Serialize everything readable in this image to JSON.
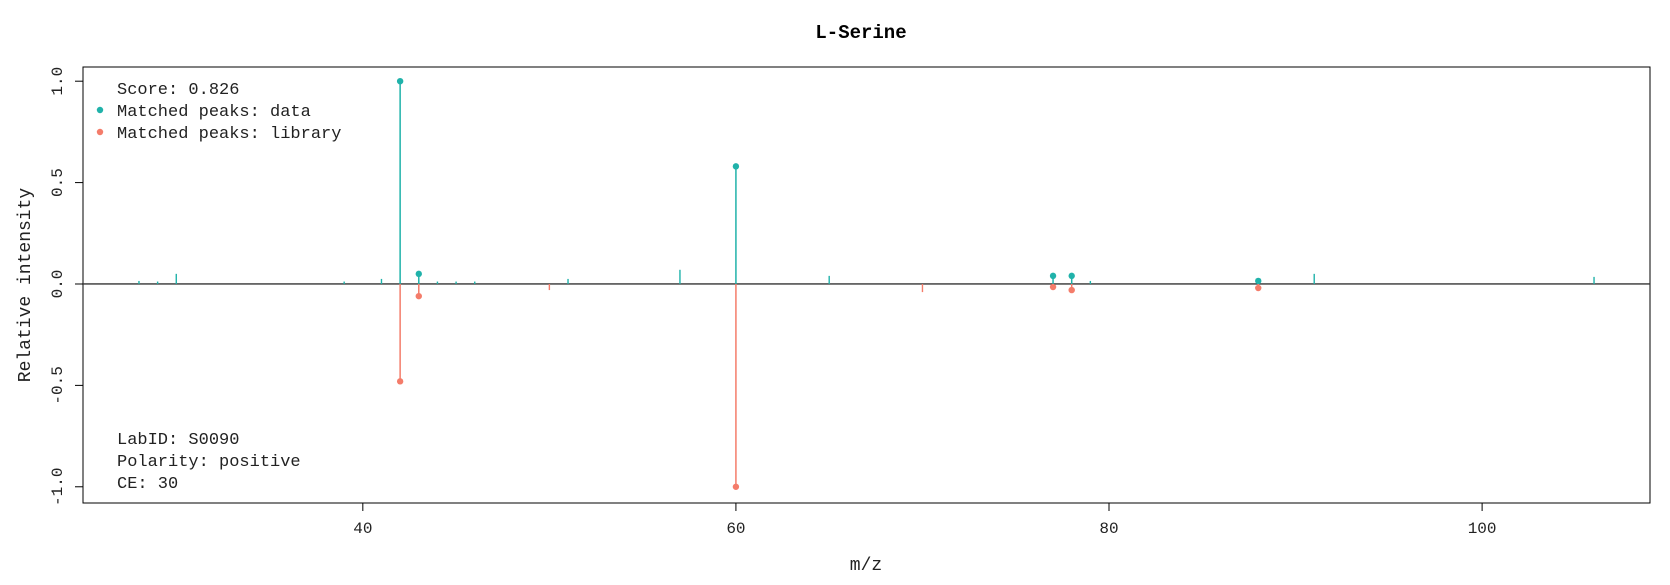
{
  "colors": {
    "data": "#20b2aa",
    "library": "#f47c6a",
    "axis": "#000000",
    "zero_line": "#333333"
  },
  "chart_data": {
    "type": "mirror-spectrum",
    "title": "L-Serine",
    "xlabel": "m/z",
    "ylabel": "Relative intensity",
    "xlim": [
      25,
      109
    ],
    "ylim": [
      -1.08,
      1.07
    ],
    "x_ticks": [
      40,
      60,
      80,
      100
    ],
    "x_tick_labels": [
      "40",
      "60",
      "80",
      "100"
    ],
    "y_ticks": [
      -1.0,
      -0.5,
      0.0,
      0.5,
      1.0
    ],
    "y_tick_labels": [
      "-1.0",
      "-0.5",
      "0.0",
      "0.5",
      "1.0"
    ],
    "grid": false,
    "legend": {
      "placement": "top-left",
      "score_text": "Score: 0.826",
      "data_entry": "Matched peaks: data",
      "library_entry": "Matched peaks: library"
    },
    "info": {
      "placement": "bottom-left",
      "lab_id": "LabID: S0090",
      "polarity": "Polarity: positive",
      "ce": "CE: 30"
    },
    "series": [
      {
        "name": "Matched peaks: data",
        "peaks": [
          {
            "mz": 28.0,
            "intensity": 0.015,
            "matched": false
          },
          {
            "mz": 29.0,
            "intensity": 0.012,
            "matched": false
          },
          {
            "mz": 30.0,
            "intensity": 0.05,
            "matched": false
          },
          {
            "mz": 39.0,
            "intensity": 0.012,
            "matched": false
          },
          {
            "mz": 41.0,
            "intensity": 0.025,
            "matched": false
          },
          {
            "mz": 42.0,
            "intensity": 1.0,
            "matched": true
          },
          {
            "mz": 43.0,
            "intensity": 0.05,
            "matched": true
          },
          {
            "mz": 44.0,
            "intensity": 0.012,
            "matched": false
          },
          {
            "mz": 45.0,
            "intensity": 0.012,
            "matched": false
          },
          {
            "mz": 46.0,
            "intensity": 0.012,
            "matched": false
          },
          {
            "mz": 51.0,
            "intensity": 0.025,
            "matched": false
          },
          {
            "mz": 57.0,
            "intensity": 0.07,
            "matched": false
          },
          {
            "mz": 60.0,
            "intensity": 0.58,
            "matched": true
          },
          {
            "mz": 65.0,
            "intensity": 0.04,
            "matched": false
          },
          {
            "mz": 77.0,
            "intensity": 0.04,
            "matched": true
          },
          {
            "mz": 78.0,
            "intensity": 0.04,
            "matched": true
          },
          {
            "mz": 79.0,
            "intensity": 0.015,
            "matched": false
          },
          {
            "mz": 88.0,
            "intensity": 0.015,
            "matched": true
          },
          {
            "mz": 91.0,
            "intensity": 0.05,
            "matched": false
          },
          {
            "mz": 106.0,
            "intensity": 0.035,
            "matched": false
          }
        ]
      },
      {
        "name": "Matched peaks: library",
        "peaks": [
          {
            "mz": 42.0,
            "intensity": 0.48,
            "matched": true
          },
          {
            "mz": 43.0,
            "intensity": 0.06,
            "matched": true
          },
          {
            "mz": 50.0,
            "intensity": 0.03,
            "matched": false
          },
          {
            "mz": 60.0,
            "intensity": 1.0,
            "matched": true
          },
          {
            "mz": 70.0,
            "intensity": 0.04,
            "matched": false
          },
          {
            "mz": 77.0,
            "intensity": 0.015,
            "matched": true
          },
          {
            "mz": 78.0,
            "intensity": 0.03,
            "matched": true
          },
          {
            "mz": 88.0,
            "intensity": 0.02,
            "matched": true
          }
        ]
      }
    ]
  }
}
